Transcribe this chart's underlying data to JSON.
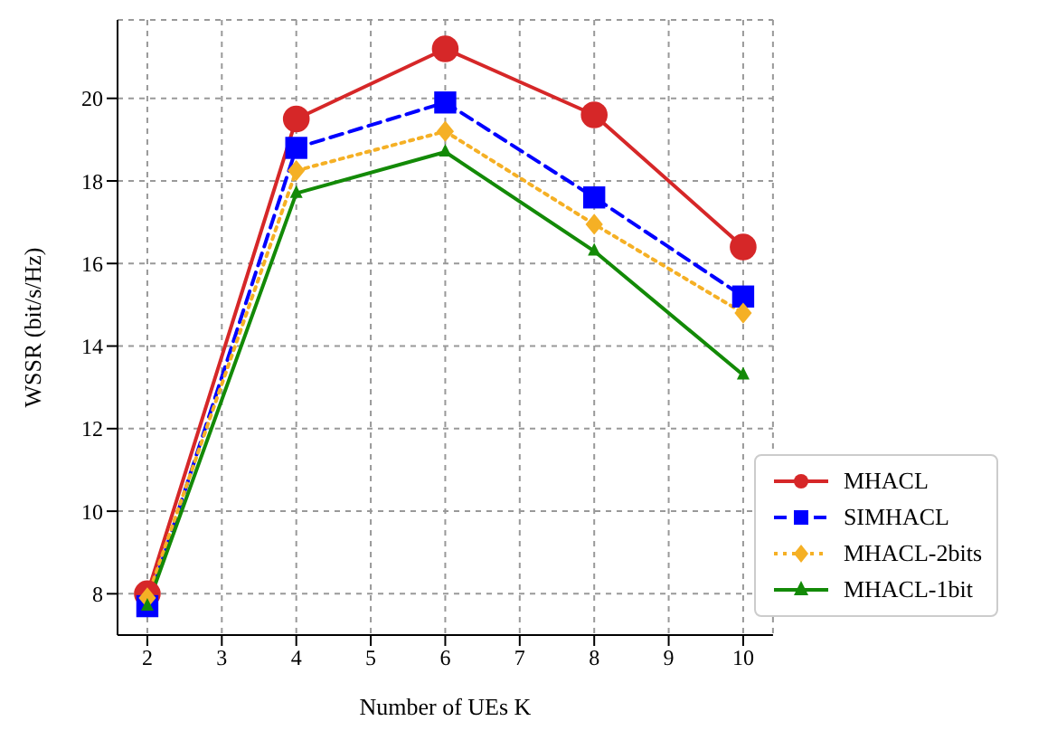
{
  "chart_data": {
    "type": "line",
    "xlabel": "Number of UEs K",
    "ylabel": "WSSR (bit/s/Hz)",
    "x": [
      2,
      4,
      6,
      8,
      10
    ],
    "series": [
      {
        "name": "MHACL",
        "color": "#d62728",
        "values": [
          8.0,
          19.5,
          21.2,
          19.6,
          16.4
        ],
        "marker": "circle",
        "line_style": "solid"
      },
      {
        "name": "SIMHACL",
        "color": "#0000ff",
        "values": [
          7.7,
          18.8,
          19.9,
          17.6,
          15.2
        ],
        "marker": "square",
        "line_style": "dashed"
      },
      {
        "name": "MHACL-2bits",
        "color": "#f5b025",
        "values": [
          7.9,
          18.25,
          19.2,
          16.95,
          14.8
        ],
        "marker": "diamond",
        "line_style": "dotted"
      },
      {
        "name": "MHACL-1bit",
        "color": "#138a07",
        "values": [
          7.7,
          17.7,
          18.7,
          16.3,
          13.3
        ],
        "marker": "triangle",
        "line_style": "solid"
      }
    ],
    "xlim": [
      1.6,
      10.4
    ],
    "xticks": [
      2,
      3,
      4,
      5,
      6,
      7,
      8,
      9,
      10
    ],
    "ylim": [
      7.0,
      21.9
    ],
    "yticks": [
      8,
      10,
      12,
      14,
      16,
      18,
      20
    ],
    "grid": true,
    "legend": "bottom right"
  }
}
